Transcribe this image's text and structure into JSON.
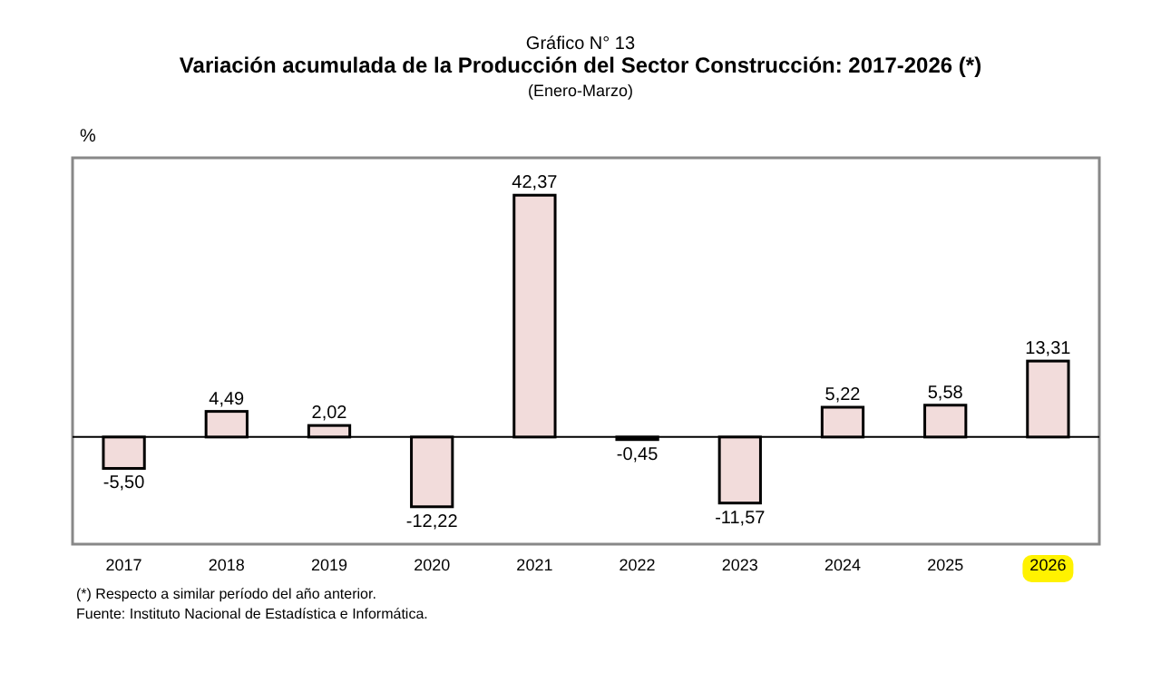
{
  "chart_data": {
    "type": "bar",
    "title": "Gráfico N° 13",
    "subtitle": "Variación acumulada de la Producción del Sector Construcción: 2017-2026  (*)",
    "ylabel": "%",
    "annotations": [
      "(Enero-Marzo)",
      "(*) Respecto a similar período del año anterior.",
      "Fuente: Instituto Nacional de Estadística e Informática."
    ],
    "categories": [
      "2017",
      "2018",
      "2019",
      "2020",
      "2021",
      "2022",
      "2023",
      "2024",
      "2025",
      "2026"
    ],
    "values": [
      -5.5,
      4.49,
      2.02,
      -12.22,
      42.37,
      -0.45,
      -11.57,
      5.22,
      5.58,
      13.31
    ],
    "value_labels": [
      "-5,50",
      "4,49",
      "2,02",
      "-12,22",
      "42,37",
      "-0,45",
      "-11,57",
      "5,22",
      "5,58",
      "13,31"
    ],
    "colors": [
      "#f2dcdb",
      "#f2dcdb",
      "#f2dcdb",
      "#f2dcdb",
      "#f2dcdb",
      "#1a1a1a",
      "#f2dcdb",
      "#f2dcdb",
      "#f2dcdb",
      "#f2dcdb"
    ],
    "data_labels": false
  }
}
